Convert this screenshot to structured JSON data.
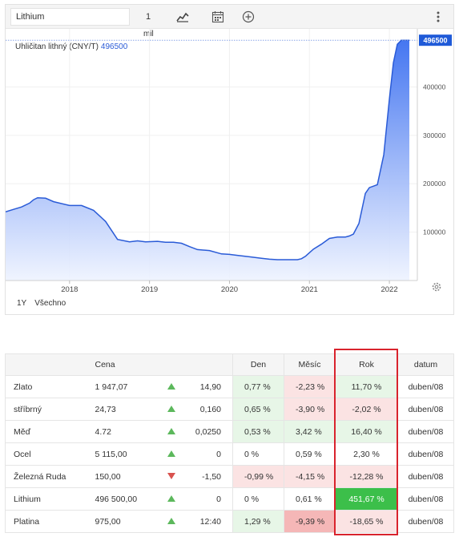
{
  "toolbar": {
    "symbol": "Lithium",
    "period_value": "1",
    "period_unit": "mil",
    "icons": [
      "chart-type-icon",
      "calendar-icon",
      "compare-icon",
      "menu-icon"
    ]
  },
  "series_label": {
    "name": "Uhličitan lithný (CNY/T)",
    "value": "496500"
  },
  "range_buttons": [
    "1Y",
    "Všechno"
  ],
  "chart_data": {
    "type": "area",
    "title": "",
    "series": [
      {
        "name": "Uhličitan lithný (CNY/T)",
        "x": [
          2017.2,
          2017.3,
          2017.4,
          2017.5,
          2017.55,
          2017.6,
          2017.7,
          2017.8,
          2018.0,
          2018.15,
          2018.3,
          2018.45,
          2018.6,
          2018.75,
          2018.85,
          2018.95,
          2019.1,
          2019.2,
          2019.3,
          2019.4,
          2019.5,
          2019.6,
          2019.75,
          2019.9,
          2020.0,
          2020.1,
          2020.25,
          2020.4,
          2020.5,
          2020.6,
          2020.75,
          2020.85,
          2020.9,
          2020.95,
          2021.05,
          2021.15,
          2021.25,
          2021.35,
          2021.45,
          2021.5,
          2021.55,
          2021.62,
          2021.7,
          2021.75,
          2021.85,
          2021.93,
          2022.0,
          2022.05,
          2022.1,
          2022.15,
          2022.2,
          2022.25
        ],
        "values": [
          142000,
          147000,
          152000,
          160000,
          167000,
          171000,
          170000,
          163000,
          155000,
          155000,
          145000,
          122000,
          85000,
          80000,
          82000,
          80000,
          81000,
          79000,
          79000,
          77000,
          70000,
          64000,
          62000,
          55000,
          54000,
          52000,
          49000,
          46000,
          44000,
          43000,
          43000,
          43000,
          45000,
          50000,
          65000,
          75000,
          87000,
          90000,
          90000,
          92000,
          96000,
          118000,
          180000,
          192000,
          198000,
          260000,
          375000,
          450000,
          488000,
          496500,
          496500,
          496500
        ]
      }
    ],
    "x_ticks": [
      "2018",
      "2019",
      "2020",
      "2021",
      "2022"
    ],
    "y_ticks": [
      "100000",
      "200000",
      "300000",
      "400000"
    ],
    "last_value_label": "496500",
    "ylim": [
      0,
      500000
    ],
    "xlim": [
      2017.2,
      2022.35
    ],
    "grid": true,
    "colors": {
      "line": "#2a5bd7",
      "fill_top": "#3b6ff0",
      "fill_bottom": "#eef3ff",
      "badge": "#1f5ad8"
    }
  },
  "table": {
    "headers": {
      "name": "",
      "price": "Cena",
      "arrow": "",
      "change": "",
      "den": "Den",
      "mesic": "Měsíc",
      "rok": "Rok",
      "datum": "datum"
    },
    "rows": [
      {
        "name": "Zlato",
        "price": "1 947,07",
        "trend": "up",
        "change": "14,90",
        "den": "0,77 %",
        "den_tone": "pos-light",
        "mesic": "-2,23 %",
        "mesic_tone": "neg-light",
        "rok": "11,70 %",
        "rok_tone": "pos-light",
        "date": "duben/08"
      },
      {
        "name": "stříbrný",
        "price": "24,73",
        "trend": "up",
        "change": "0,160",
        "den": "0,65 %",
        "den_tone": "pos-light",
        "mesic": "-3,90 %",
        "mesic_tone": "neg-light",
        "rok": "-2,02 %",
        "rok_tone": "neg-light",
        "date": "duben/08"
      },
      {
        "name": "Měď",
        "price": "4.72",
        "trend": "up",
        "change": "0,0250",
        "den": "0,53 %",
        "den_tone": "pos-light",
        "mesic": "3,42 %",
        "mesic_tone": "pos-light",
        "rok": "16,40 %",
        "rok_tone": "pos-light",
        "date": "duben/08"
      },
      {
        "name": "Ocel",
        "price": "5 115,00",
        "trend": "up",
        "change": "0",
        "den": "0 %",
        "den_tone": "",
        "mesic": "0,59 %",
        "mesic_tone": "",
        "rok": "2,30 %",
        "rok_tone": "",
        "date": "duben/08"
      },
      {
        "name": "Železná Ruda",
        "price": "150,00",
        "trend": "down",
        "change": "-1,50",
        "den": "-0,99 %",
        "den_tone": "neg-light",
        "mesic": "-4,15 %",
        "mesic_tone": "neg-light",
        "rok": "-12,28 %",
        "rok_tone": "neg-light",
        "date": "duben/08"
      },
      {
        "name": "Lithium",
        "price": "496 500,00",
        "trend": "up",
        "change": "0",
        "den": "0 %",
        "den_tone": "",
        "mesic": "0,61 %",
        "mesic_tone": "",
        "rok": "451,67 %",
        "rok_tone": "pos-strong",
        "date": "duben/08"
      },
      {
        "name": "Platina",
        "price": "975,00",
        "trend": "up",
        "change": "12:40",
        "den": "1,29 %",
        "den_tone": "pos-light",
        "mesic": "-9,39 %",
        "mesic_tone": "neg-mid",
        "rok": "-18,65 %",
        "rok_tone": "neg-light",
        "date": "duben/08"
      }
    ]
  }
}
